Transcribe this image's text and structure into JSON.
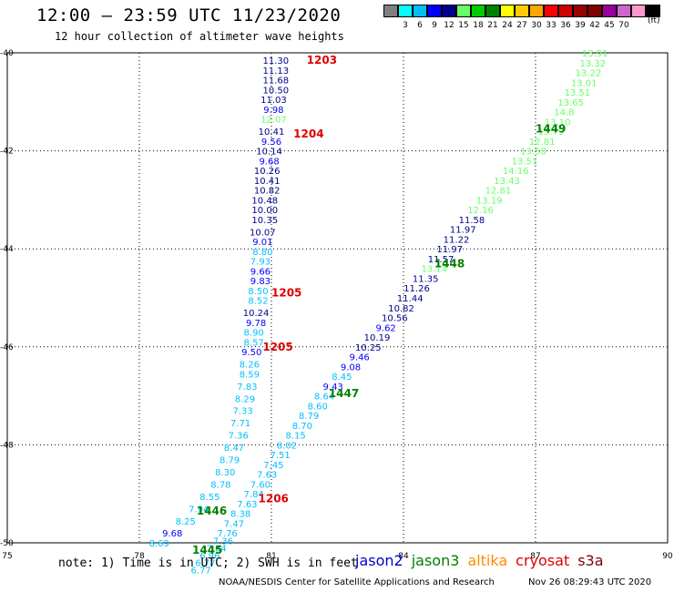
{
  "title": "12:00 – 23:59 UTC 11/23/2020",
  "subtitle": "12 hour collection of altimeter wave heights",
  "legend": {
    "colors": [
      "#808080",
      "#00ffff",
      "#00bfff",
      "#0000ff",
      "#00008b",
      "#66ff66",
      "#00cc00",
      "#008000",
      "#ffff00",
      "#ffcc00",
      "#ffa500",
      "#ff0000",
      "#cc0000",
      "#990000",
      "#800000",
      "#990099",
      "#cc66cc",
      "#ff99cc",
      "#000000"
    ],
    "labels": [
      "3",
      "6",
      "9",
      "12",
      "15",
      "18",
      "21",
      "24",
      "27",
      "30",
      "33",
      "36",
      "39",
      "42",
      "45",
      "70"
    ],
    "units": "(ft)"
  },
  "note": "note: 1) Time is in UTC; 2) SWH is in feet",
  "satellites": [
    {
      "name": "jason2",
      "color": "#0000cc"
    },
    {
      "name": "jason3",
      "color": "#008000"
    },
    {
      "name": "altika",
      "color": "#ff8c00"
    },
    {
      "name": "cryosat",
      "color": "#dd0000"
    },
    {
      "name": "s3a",
      "color": "#800000"
    }
  ],
  "credit": "NOAA/NESDIS Center for Satellite Applications and Research",
  "timestamp": "Nov 26 08:29:43 UTC 2020",
  "chart_data": {
    "type": "scatter",
    "xlim": [
      75,
      90
    ],
    "ylim": [
      -50,
      -40
    ],
    "x_ticks": [
      "75",
      "78",
      "81",
      "84",
      "87",
      "90"
    ],
    "y_ticks": [
      "-40",
      "-42",
      "-44",
      "-46",
      "-48",
      "-50"
    ],
    "grid": true,
    "series": [
      {
        "track": "upper-left",
        "points": [
          {
            "x": 81.1,
            "y": -40.15,
            "label": "11.30",
            "color": "#00008b"
          },
          {
            "x": 81.1,
            "y": -40.35,
            "label": "11.13",
            "color": "#00008b"
          },
          {
            "x": 81.1,
            "y": -40.55,
            "label": "11.68",
            "color": "#00008b"
          },
          {
            "x": 81.1,
            "y": -40.75,
            "label": "10.50",
            "color": "#00008b"
          },
          {
            "x": 81.05,
            "y": -40.95,
            "label": "11.03",
            "color": "#00008b"
          },
          {
            "x": 81.05,
            "y": -41.15,
            "label": "9.98",
            "color": "#0000ff"
          },
          {
            "x": 81.05,
            "y": -41.35,
            "label": "12.07",
            "color": "#66ff66"
          },
          {
            "x": 81.0,
            "y": -41.6,
            "label": "10.41",
            "color": "#00008b"
          },
          {
            "x": 81.0,
            "y": -41.8,
            "label": "9.56",
            "color": "#0000ff"
          },
          {
            "x": 80.95,
            "y": -42.0,
            "label": "10.14",
            "color": "#00008b"
          },
          {
            "x": 80.95,
            "y": -42.2,
            "label": "9.68",
            "color": "#0000ff"
          },
          {
            "x": 80.9,
            "y": -42.4,
            "label": "10.26",
            "color": "#00008b"
          },
          {
            "x": 80.9,
            "y": -42.6,
            "label": "10.41",
            "color": "#00008b"
          },
          {
            "x": 80.9,
            "y": -42.8,
            "label": "10.82",
            "color": "#00008b"
          },
          {
            "x": 80.85,
            "y": -43.0,
            "label": "10.48",
            "color": "#00008b"
          },
          {
            "x": 80.85,
            "y": -43.2,
            "label": "10.00",
            "color": "#00008b"
          },
          {
            "x": 80.85,
            "y": -43.4,
            "label": "10.35",
            "color": "#00008b"
          },
          {
            "x": 80.8,
            "y": -43.65,
            "label": "10.07",
            "color": "#00008b"
          },
          {
            "x": 80.8,
            "y": -43.85,
            "label": "9.01",
            "color": "#0000ff"
          },
          {
            "x": 80.8,
            "y": -44.05,
            "label": "8.80",
            "color": "#00bfff"
          },
          {
            "x": 80.75,
            "y": -44.25,
            "label": "7.93",
            "color": "#00bfff"
          },
          {
            "x": 80.75,
            "y": -44.45,
            "label": "9.66",
            "color": "#0000ff"
          },
          {
            "x": 80.75,
            "y": -44.65,
            "label": "9.83",
            "color": "#0000ff"
          },
          {
            "x": 80.7,
            "y": -44.85,
            "label": "8.50",
            "color": "#00bfff"
          },
          {
            "x": 80.7,
            "y": -45.05,
            "label": "8.52",
            "color": "#00bfff"
          },
          {
            "x": 80.65,
            "y": -45.3,
            "label": "10.24",
            "color": "#00008b"
          },
          {
            "x": 80.65,
            "y": -45.5,
            "label": "9.78",
            "color": "#0000ff"
          },
          {
            "x": 80.6,
            "y": -45.7,
            "label": "8.90",
            "color": "#00bfff"
          },
          {
            "x": 80.6,
            "y": -45.9,
            "label": "8.57",
            "color": "#00bfff"
          },
          {
            "x": 80.55,
            "y": -46.1,
            "label": "9.50",
            "color": "#0000ff"
          },
          {
            "x": 80.5,
            "y": -46.35,
            "label": "8.26",
            "color": "#00bfff"
          },
          {
            "x": 80.5,
            "y": -46.55,
            "label": "8.59",
            "color": "#00bfff"
          },
          {
            "x": 80.45,
            "y": -46.8,
            "label": "7.83",
            "color": "#00bfff"
          },
          {
            "x": 80.4,
            "y": -47.05,
            "label": "8.29",
            "color": "#00bfff"
          },
          {
            "x": 80.35,
            "y": -47.3,
            "label": "7.33",
            "color": "#00bfff"
          },
          {
            "x": 80.3,
            "y": -47.55,
            "label": "7.71",
            "color": "#00bfff"
          },
          {
            "x": 80.25,
            "y": -47.8,
            "label": "7.36",
            "color": "#00bfff"
          },
          {
            "x": 80.15,
            "y": -48.05,
            "label": "8.47",
            "color": "#00bfff"
          },
          {
            "x": 80.05,
            "y": -48.3,
            "label": "8.79",
            "color": "#00bfff"
          },
          {
            "x": 79.95,
            "y": -48.55,
            "label": "8.30",
            "color": "#00bfff"
          },
          {
            "x": 79.85,
            "y": -48.8,
            "label": "8.78",
            "color": "#00bfff"
          },
          {
            "x": 79.6,
            "y": -49.05,
            "label": "8.55",
            "color": "#00bfff"
          },
          {
            "x": 79.35,
            "y": -49.3,
            "label": "7.94",
            "color": "#00bfff"
          },
          {
            "x": 79.05,
            "y": -49.55,
            "label": "8.25",
            "color": "#00bfff"
          },
          {
            "x": 78.75,
            "y": -49.8,
            "label": "9.68",
            "color": "#0000ff"
          },
          {
            "x": 78.45,
            "y": -50.0,
            "label": "8.69",
            "color": "#00bfff"
          }
        ]
      },
      {
        "track": "right",
        "points": [
          {
            "x": 88.35,
            "y": -40.0,
            "label": "13.91",
            "color": "#66ff66"
          },
          {
            "x": 88.3,
            "y": -40.2,
            "label": "13.32",
            "color": "#66ff66"
          },
          {
            "x": 88.2,
            "y": -40.4,
            "label": "13.22",
            "color": "#66ff66"
          },
          {
            "x": 88.1,
            "y": -40.6,
            "label": "13.01",
            "color": "#66ff66"
          },
          {
            "x": 87.95,
            "y": -40.8,
            "label": "13.51",
            "color": "#66ff66"
          },
          {
            "x": 87.8,
            "y": -41.0,
            "label": "13.65",
            "color": "#66ff66"
          },
          {
            "x": 87.65,
            "y": -41.2,
            "label": "14.8",
            "color": "#66ff66"
          },
          {
            "x": 87.5,
            "y": -41.4,
            "label": "13.10",
            "color": "#66ff66"
          },
          {
            "x": 87.35,
            "y": -41.6,
            "label": "13.79",
            "color": "#66ff66"
          },
          {
            "x": 87.15,
            "y": -41.8,
            "label": "12.81",
            "color": "#66ff66"
          },
          {
            "x": 86.95,
            "y": -42.0,
            "label": "13.58",
            "color": "#66ff66"
          },
          {
            "x": 86.75,
            "y": -42.2,
            "label": "13.51",
            "color": "#66ff66"
          },
          {
            "x": 86.55,
            "y": -42.4,
            "label": "14.16",
            "color": "#66ff66"
          },
          {
            "x": 86.35,
            "y": -42.6,
            "label": "13.43",
            "color": "#66ff66"
          },
          {
            "x": 86.15,
            "y": -42.8,
            "label": "12.81",
            "color": "#66ff66"
          },
          {
            "x": 85.95,
            "y": -43.0,
            "label": "13.19",
            "color": "#66ff66"
          },
          {
            "x": 85.75,
            "y": -43.2,
            "label": "12.16",
            "color": "#66ff66"
          },
          {
            "x": 85.55,
            "y": -43.4,
            "label": "11.58",
            "color": "#00008b"
          },
          {
            "x": 85.35,
            "y": -43.6,
            "label": "11.97",
            "color": "#00008b"
          },
          {
            "x": 85.2,
            "y": -43.8,
            "label": "11.22",
            "color": "#00008b"
          },
          {
            "x": 85.05,
            "y": -44.0,
            "label": "11.97",
            "color": "#00008b"
          },
          {
            "x": 84.85,
            "y": -44.2,
            "label": "11.57",
            "color": "#00008b"
          },
          {
            "x": 84.7,
            "y": -44.4,
            "label": "13.14",
            "color": "#66ff66"
          },
          {
            "x": 84.5,
            "y": -44.6,
            "label": "11.35",
            "color": "#00008b"
          },
          {
            "x": 84.3,
            "y": -44.8,
            "label": "11.26",
            "color": "#00008b"
          },
          {
            "x": 84.15,
            "y": -45.0,
            "label": "11.44",
            "color": "#00008b"
          },
          {
            "x": 83.95,
            "y": -45.2,
            "label": "10.82",
            "color": "#00008b"
          },
          {
            "x": 83.8,
            "y": -45.4,
            "label": "10.56",
            "color": "#00008b"
          },
          {
            "x": 83.6,
            "y": -45.6,
            "label": "9.62",
            "color": "#0000ff"
          },
          {
            "x": 83.4,
            "y": -45.8,
            "label": "10.19",
            "color": "#00008b"
          },
          {
            "x": 83.2,
            "y": -46.0,
            "label": "10.25",
            "color": "#00008b"
          },
          {
            "x": 83.0,
            "y": -46.2,
            "label": "9.46",
            "color": "#0000ff"
          },
          {
            "x": 82.8,
            "y": -46.4,
            "label": "9.08",
            "color": "#0000ff"
          },
          {
            "x": 82.6,
            "y": -46.6,
            "label": "8.45",
            "color": "#00bfff"
          },
          {
            "x": 82.4,
            "y": -46.8,
            "label": "9.43",
            "color": "#0000ff"
          },
          {
            "x": 82.2,
            "y": -47.0,
            "label": "8.64",
            "color": "#00bfff"
          },
          {
            "x": 82.05,
            "y": -47.2,
            "label": "8.60",
            "color": "#00bfff"
          },
          {
            "x": 81.85,
            "y": -47.4,
            "label": "8.79",
            "color": "#00bfff"
          },
          {
            "x": 81.7,
            "y": -47.6,
            "label": "8.70",
            "color": "#00bfff"
          },
          {
            "x": 81.55,
            "y": -47.8,
            "label": "8.15",
            "color": "#00bfff"
          },
          {
            "x": 81.35,
            "y": -48.0,
            "label": "8.02",
            "color": "#00bfff"
          },
          {
            "x": 81.2,
            "y": -48.2,
            "label": "7.51",
            "color": "#00bfff"
          },
          {
            "x": 81.05,
            "y": -48.4,
            "label": "7.45",
            "color": "#00bfff"
          },
          {
            "x": 80.9,
            "y": -48.6,
            "label": "7.63",
            "color": "#00bfff"
          },
          {
            "x": 80.75,
            "y": -48.8,
            "label": "7.60",
            "color": "#00bfff"
          },
          {
            "x": 80.6,
            "y": -49.0,
            "label": "7.84",
            "color": "#00bfff"
          },
          {
            "x": 80.45,
            "y": -49.2,
            "label": "7.63",
            "color": "#00bfff"
          },
          {
            "x": 80.3,
            "y": -49.4,
            "label": "8.38",
            "color": "#00bfff"
          },
          {
            "x": 80.15,
            "y": -49.6,
            "label": "7.47",
            "color": "#00bfff"
          },
          {
            "x": 80.0,
            "y": -49.8,
            "label": "7.76",
            "color": "#00bfff"
          },
          {
            "x": 79.9,
            "y": -49.95,
            "label": "7.36",
            "color": "#00bfff"
          },
          {
            "x": 79.75,
            "y": -50.1,
            "label": "7.64",
            "color": "#00bfff"
          },
          {
            "x": 79.6,
            "y": -50.25,
            "label": "6.96",
            "color": "#00bfff"
          },
          {
            "x": 79.5,
            "y": -50.4,
            "label": "6.77",
            "color": "#00bfff"
          },
          {
            "x": 79.4,
            "y": -50.55,
            "label": "6.77",
            "color": "#00bfff"
          }
        ]
      }
    ],
    "pass_labels": [
      {
        "text": "1203",
        "x": 81.8,
        "y": -40.15,
        "color": "#dd0000"
      },
      {
        "text": "1204",
        "x": 81.5,
        "y": -41.65,
        "color": "#dd0000"
      },
      {
        "text": "1205",
        "x": 81.0,
        "y": -44.9,
        "color": "#dd0000"
      },
      {
        "text": "1205",
        "x": 80.8,
        "y": -46.0,
        "color": "#dd0000"
      },
      {
        "text": "1206",
        "x": 80.7,
        "y": -49.1,
        "color": "#dd0000"
      },
      {
        "text": "1449",
        "x": 87.0,
        "y": -41.55,
        "color": "#008000"
      },
      {
        "text": "1448",
        "x": 84.7,
        "y": -44.3,
        "color": "#008000"
      },
      {
        "text": "1447",
        "x": 82.3,
        "y": -46.95,
        "color": "#008000"
      },
      {
        "text": "1446",
        "x": 79.3,
        "y": -49.35,
        "color": "#008000"
      },
      {
        "text": "1445",
        "x": 79.2,
        "y": -50.15,
        "color": "#008000"
      }
    ]
  }
}
